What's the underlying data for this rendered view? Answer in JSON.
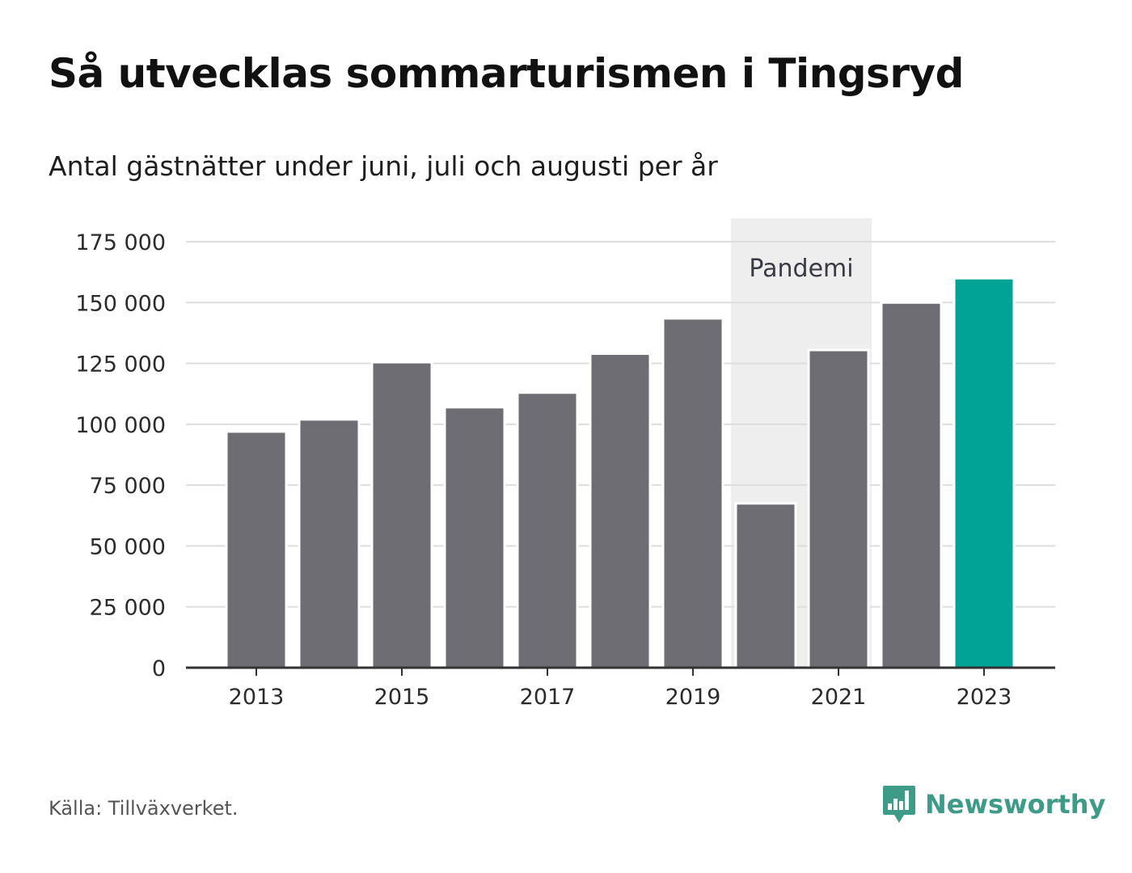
{
  "title": "Så utvecklas sommarturismen i Tingsryd",
  "subtitle": "Antal gästnätter under juni, juli och augusti per år",
  "source": "Källa: Tillväxverket.",
  "brand": {
    "name": "Newsworthy",
    "icon": "newsworthy-logo-icon",
    "color": "#3d9b88"
  },
  "colors": {
    "bar": "#6e6d74",
    "highlight": "#00a396",
    "band": "#eeeeee",
    "grid": "#dddddd",
    "axis": "#333333"
  },
  "chart_data": {
    "type": "bar",
    "title": "Så utvecklas sommarturismen i Tingsryd",
    "subtitle": "Antal gästnätter under juni, juli och augusti per år",
    "categories": [
      "2013",
      "2014",
      "2015",
      "2016",
      "2017",
      "2018",
      "2019",
      "2020",
      "2021",
      "2022",
      "2023"
    ],
    "values": [
      97000,
      102000,
      125500,
      107000,
      113000,
      129000,
      143500,
      67500,
      130500,
      150000,
      160000
    ],
    "highlight_category": "2023",
    "ylim": [
      0,
      175000
    ],
    "yticks": [
      0,
      25000,
      50000,
      75000,
      100000,
      125000,
      150000,
      175000
    ],
    "ytick_labels": [
      "0",
      "25 000",
      "50 000",
      "75 000",
      "100 000",
      "125 000",
      "150 000",
      "175 000"
    ],
    "xtick_labels": [
      "2013",
      "2015",
      "2017",
      "2019",
      "2021",
      "2023"
    ],
    "annotation": {
      "label": "Pandemi",
      "from": "2020",
      "to": "2021"
    },
    "grid": true,
    "legend": "none"
  }
}
